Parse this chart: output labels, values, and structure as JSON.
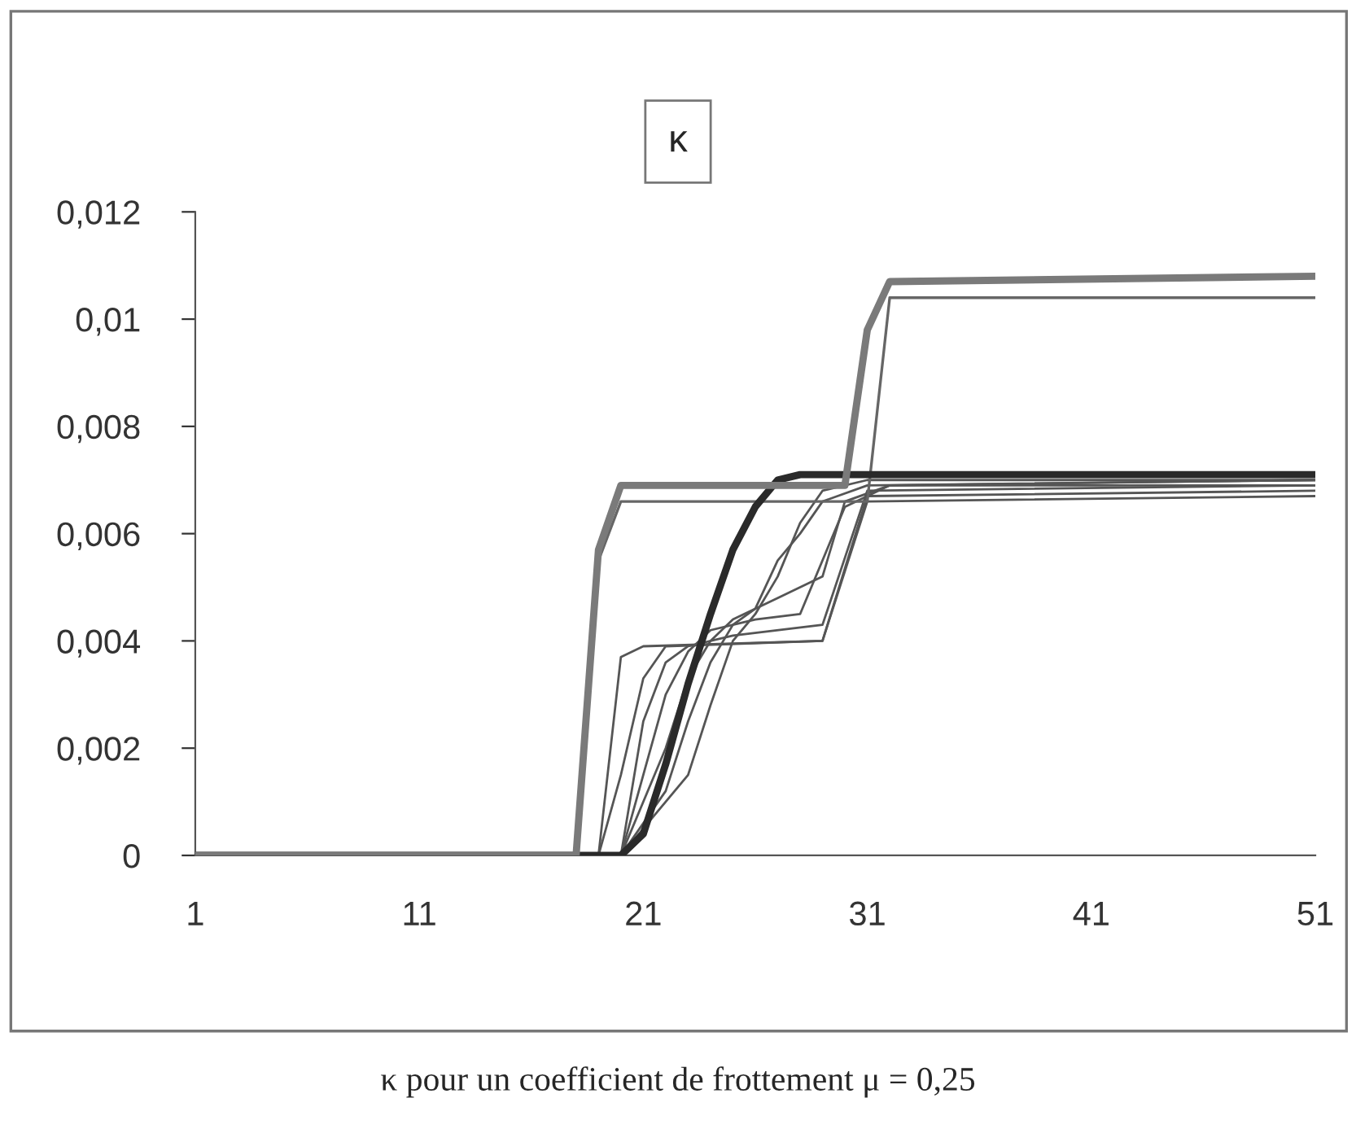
{
  "chart_data": {
    "type": "line",
    "title": "κ",
    "annotations": [
      "κ pour un coefficient de frottement μ = 0,25"
    ],
    "xlim": [
      1,
      51
    ],
    "xticks": [
      1,
      11,
      21,
      31,
      41,
      51
    ],
    "ylim": [
      0,
      0.012
    ],
    "yticks": [
      {
        "value": 0,
        "label": "0"
      },
      {
        "value": 0.002,
        "label": "0,002"
      },
      {
        "value": 0.004,
        "label": "0,004"
      },
      {
        "value": 0.006,
        "label": "0,006"
      },
      {
        "value": 0.008,
        "label": "0,008"
      },
      {
        "value": 0.01,
        "label": "0,01"
      },
      {
        "value": 0.012,
        "label": "0,012"
      }
    ],
    "grid": false,
    "legend": false,
    "marker": "none",
    "line_style": "solid",
    "series": [
      {
        "color": "#555555",
        "x": [
          1,
          19,
          20,
          21,
          29,
          31,
          51
        ],
        "values": [
          0,
          0,
          0.0037,
          0.0039,
          0.004,
          0.0066,
          0.0067
        ]
      },
      {
        "color": "#555555",
        "x": [
          1,
          19,
          20,
          21,
          22,
          29,
          31,
          51
        ],
        "values": [
          0,
          0,
          0.0015,
          0.0033,
          0.0039,
          0.004,
          0.0067,
          0.0068
        ]
      },
      {
        "color": "#555555",
        "x": [
          1,
          20,
          21,
          22,
          23,
          25,
          29,
          31,
          51
        ],
        "values": [
          0,
          0,
          0.0025,
          0.0036,
          0.0039,
          0.0041,
          0.0043,
          0.0068,
          0.0069
        ]
      },
      {
        "color": "#555555",
        "x": [
          1,
          20,
          21,
          22,
          23,
          24,
          26,
          28,
          30,
          32,
          51
        ],
        "values": [
          0,
          0,
          0.0015,
          0.003,
          0.0038,
          0.0042,
          0.0044,
          0.0045,
          0.0065,
          0.0069,
          0.0069
        ]
      },
      {
        "color": "#555555",
        "x": [
          1,
          20,
          22,
          23,
          24,
          25,
          27,
          29,
          30,
          32,
          51
        ],
        "values": [
          0,
          0,
          0.002,
          0.0033,
          0.004,
          0.0044,
          0.0048,
          0.0052,
          0.0066,
          0.0069,
          0.007
        ]
      },
      {
        "color": "#555555",
        "x": [
          1,
          20,
          22,
          23,
          24,
          25,
          26,
          27,
          28,
          29,
          31,
          51
        ],
        "values": [
          0,
          0,
          0.0012,
          0.0025,
          0.0036,
          0.0043,
          0.0046,
          0.0055,
          0.006,
          0.0066,
          0.0069,
          0.007
        ]
      },
      {
        "color": "#555555",
        "x": [
          1,
          20,
          23,
          24,
          25,
          26,
          27,
          28,
          29,
          31,
          51
        ],
        "values": [
          0,
          0,
          0.0015,
          0.0028,
          0.004,
          0.0045,
          0.0052,
          0.0062,
          0.0068,
          0.007,
          0.007
        ]
      },
      {
        "color": "#666666",
        "x": [
          1,
          18,
          19,
          20,
          31,
          32,
          51
        ],
        "values": [
          0,
          0,
          0.0055,
          0.0066,
          0.0066,
          0.0104,
          0.0104
        ]
      },
      {
        "color": "#2a2a2a",
        "x": [
          1,
          20,
          21,
          22,
          23,
          24,
          25,
          26,
          27,
          28,
          51
        ],
        "values": [
          0,
          0,
          0.0004,
          0.0017,
          0.0032,
          0.0045,
          0.0057,
          0.0065,
          0.007,
          0.0071,
          0.0071
        ]
      },
      {
        "color": "#7a7a7a",
        "x": [
          1,
          18,
          19,
          20,
          30,
          31,
          32,
          51
        ],
        "values": [
          0,
          0,
          0.0057,
          0.0069,
          0.0069,
          0.0098,
          0.0107,
          0.0108
        ]
      }
    ]
  }
}
